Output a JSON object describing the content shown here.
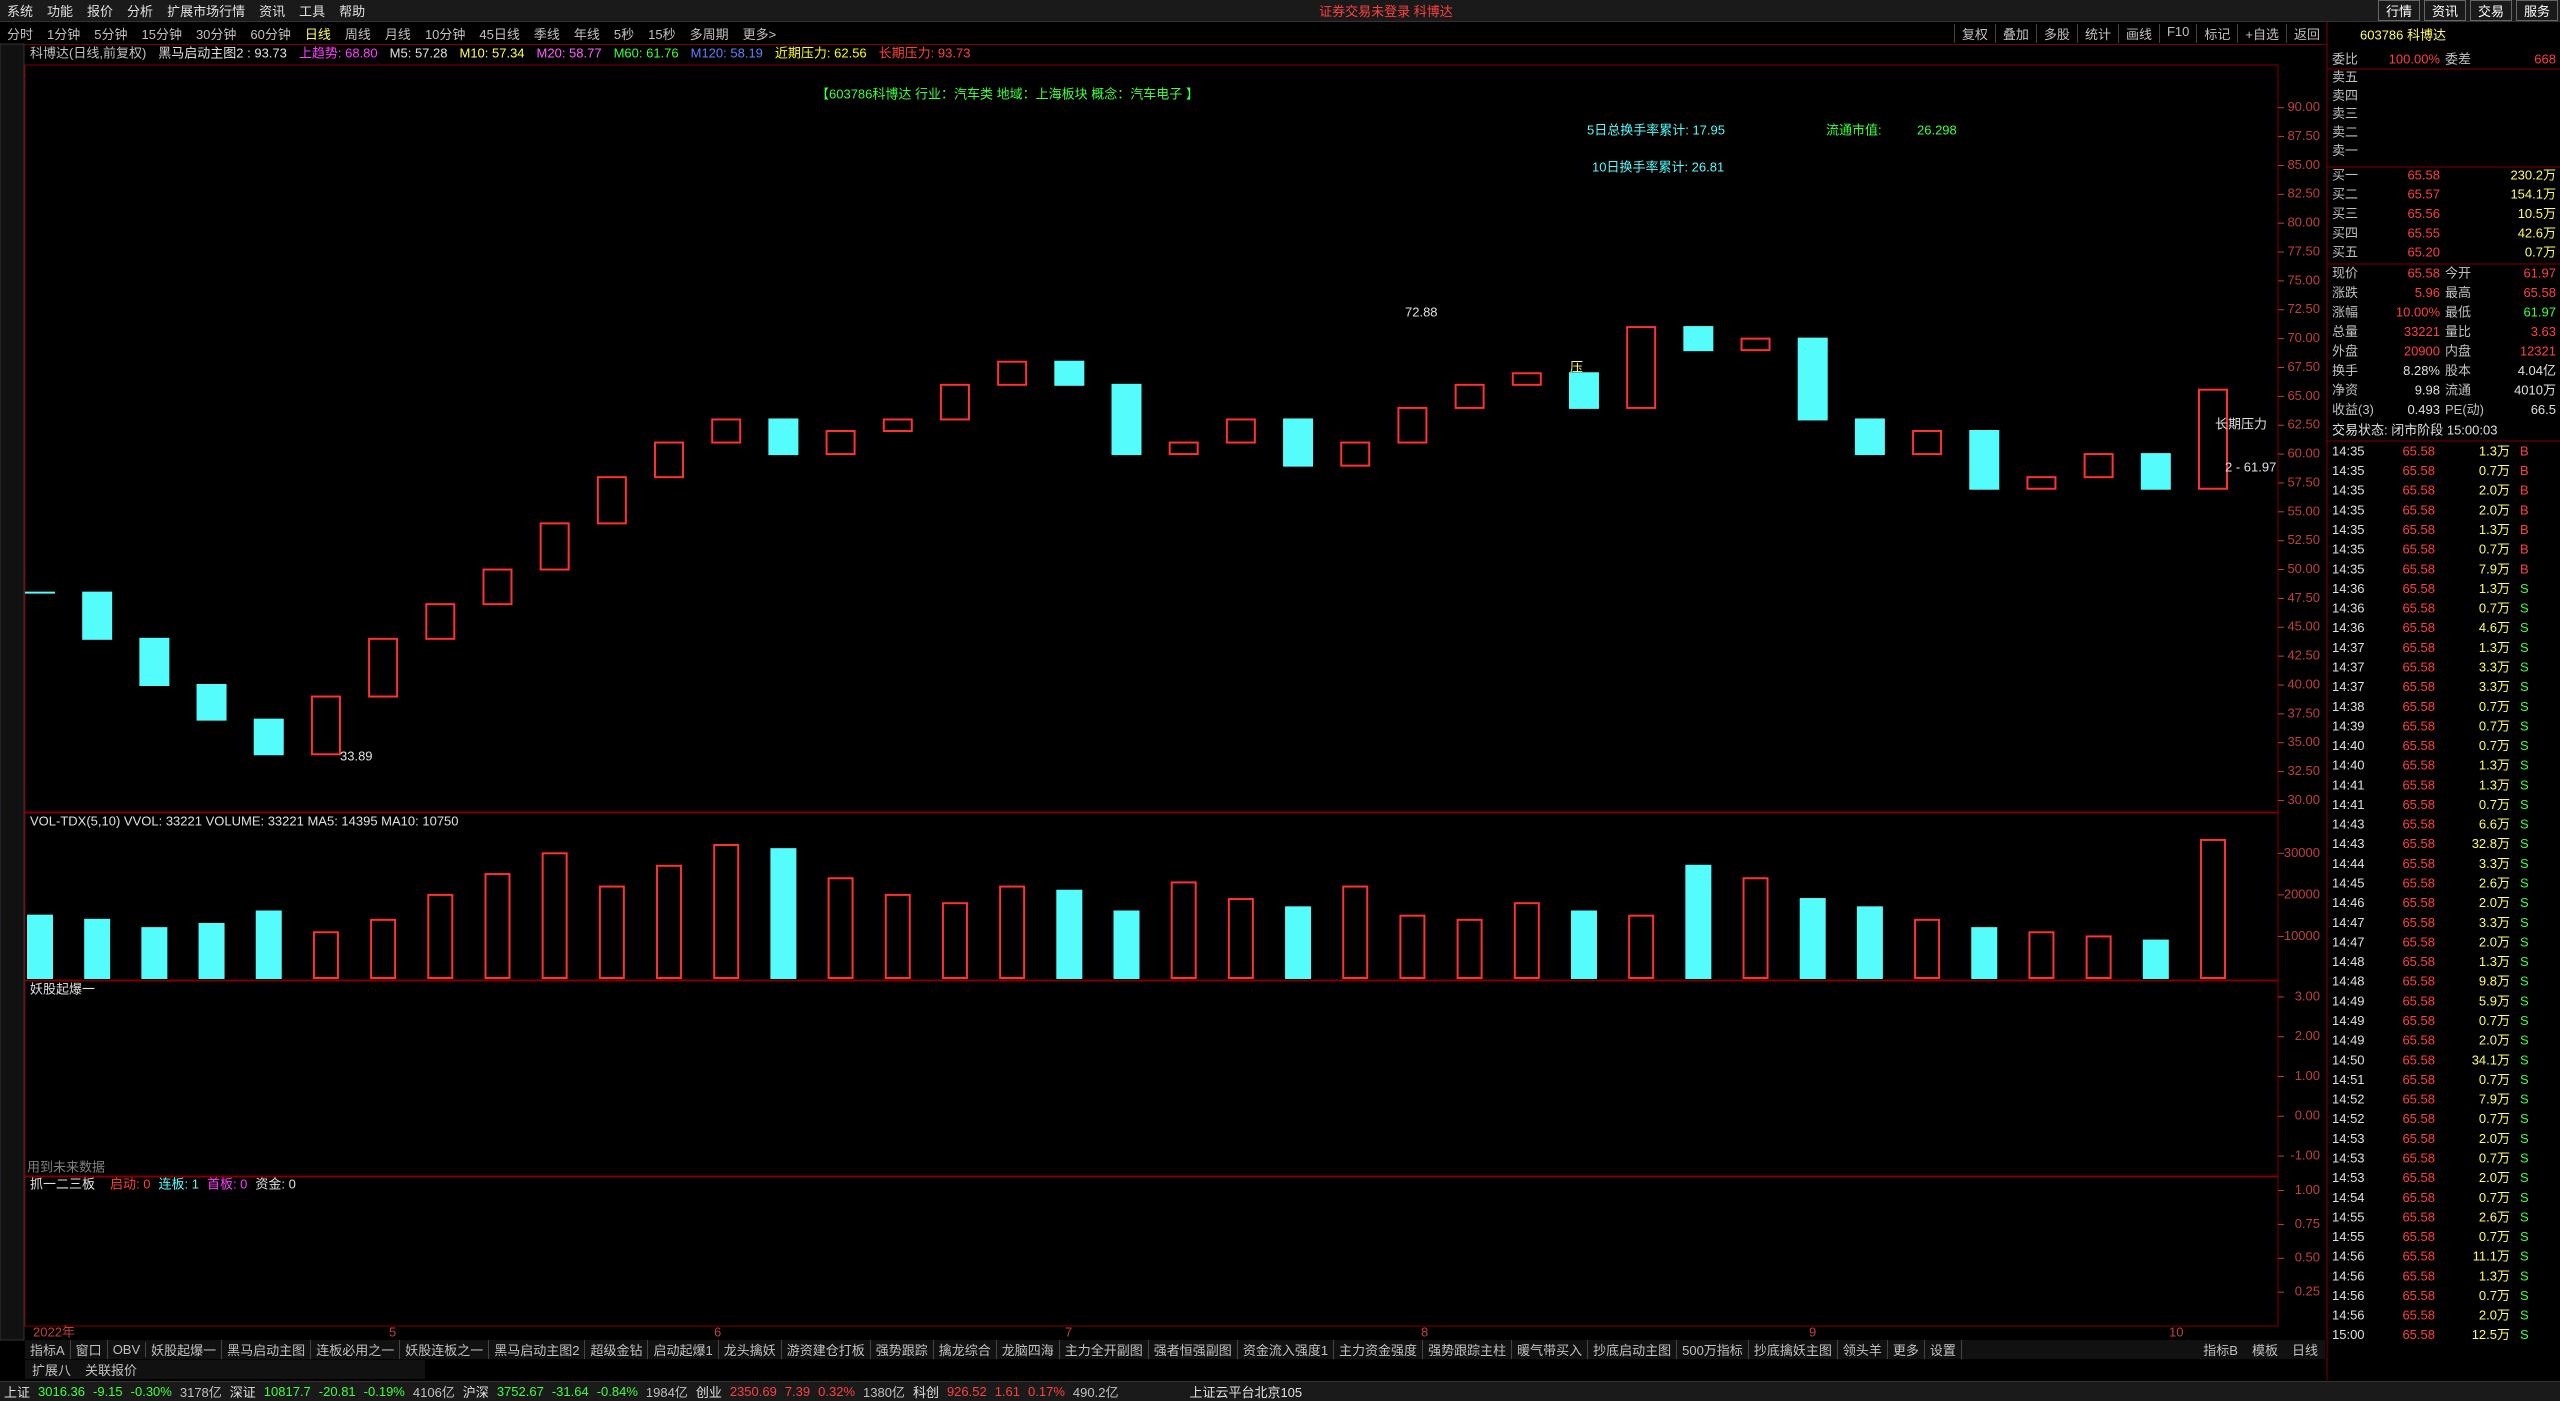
{
  "menu": [
    "系统",
    "功能",
    "报价",
    "分析",
    "扩展市场行情",
    "资讯",
    "工具",
    "帮助"
  ],
  "login_notice": "证券交易未登录 科博达",
  "right_menu": [
    "行情",
    "资讯",
    "交易",
    "服务"
  ],
  "periods": [
    "分时",
    "1分钟",
    "5分钟",
    "15分钟",
    "30分钟",
    "60分钟",
    "日线",
    "周线",
    "月线",
    "10分钟",
    "45日线",
    "季线",
    "年线",
    "5秒",
    "15秒",
    "多周期",
    "更多>"
  ],
  "tools": [
    "复权",
    "叠加",
    "多股",
    "统计",
    "画线",
    "F10",
    "标记",
    "+自选",
    "返回"
  ],
  "indicator_line": [
    {
      "text": "科博达(日线,前复权)",
      "color": "#c0c0c0"
    },
    {
      "text": "黑马启动主图2 : 93.73",
      "color": "#e0e0e0"
    },
    {
      "text": "上趋势: 68.80",
      "color": "#ff40ff"
    },
    {
      "text": "M5: 57.28",
      "color": "#e0e0e0"
    },
    {
      "text": "M10: 57.34",
      "color": "#ffff60"
    },
    {
      "text": "M20: 58.77",
      "color": "#ff60ff"
    },
    {
      "text": "M60: 61.76",
      "color": "#40ff40"
    },
    {
      "text": "M120: 58.19",
      "color": "#6080ff"
    },
    {
      "text": "近期压力: 62.56",
      "color": "#ffff00"
    },
    {
      "text": "长期压力: 93.73",
      "color": "#ff4040"
    }
  ],
  "info": "【603786科博达 行业：汽车类 地域：上海板块 概念：汽车电子 】",
  "turnover5": "5日总换手率累计: 17.95",
  "float_cap_label": "流通市值:",
  "float_cap": "26.298",
  "turnover10": "10日换手率累计: 26.81",
  "annotations": {
    "high": "72.88",
    "low": "33.89",
    "pressure": "压",
    "long_pressure": "长期压力",
    "last": "2 - 61.97"
  },
  "chart_data": {
    "type": "candlestick",
    "close": [
      48,
      44,
      40,
      37,
      34,
      39,
      44,
      47,
      50,
      54,
      58,
      61,
      63,
      60,
      62,
      63,
      66,
      68,
      66,
      60,
      61,
      63,
      59,
      61,
      64,
      66,
      67,
      64,
      71,
      69,
      70,
      63,
      60,
      62,
      57,
      58,
      60,
      57,
      65.58
    ],
    "volume": [
      15000,
      14000,
      12000,
      13000,
      16000,
      11000,
      14000,
      20000,
      25000,
      30000,
      22000,
      27000,
      32000,
      31000,
      24000,
      20000,
      18000,
      22000,
      21000,
      16000,
      23000,
      19000,
      17000,
      22000,
      15000,
      14000,
      18000,
      16000,
      15000,
      27000,
      24000,
      19000,
      17000,
      14000,
      12000,
      11000,
      10000,
      9000,
      33221
    ],
    "up_color": "#ff3232",
    "down_color": "#54fcfc",
    "ylim": [
      29,
      93.7
    ],
    "yticks": [
      {
        "value": 30,
        "label": "30.00"
      },
      {
        "value": 32.5,
        "label": "32.50"
      },
      {
        "value": 35,
        "label": "35.00"
      },
      {
        "value": 37.5,
        "label": "37.50"
      },
      {
        "value": 40,
        "label": "40.00"
      },
      {
        "value": 42.5,
        "label": "42.50"
      },
      {
        "value": 45,
        "label": "45.00"
      },
      {
        "value": 47.5,
        "label": "47.50"
      },
      {
        "value": 50,
        "label": "50.00"
      },
      {
        "value": 52.5,
        "label": "52.50"
      },
      {
        "value": 55,
        "label": "55.00"
      },
      {
        "value": 57.5,
        "label": "57.50"
      },
      {
        "value": 60,
        "label": "60.00"
      },
      {
        "value": 62.5,
        "label": "62.50"
      },
      {
        "value": 65,
        "label": "65.00"
      },
      {
        "value": 67.5,
        "label": "67.50"
      },
      {
        "value": 70,
        "label": "70.00"
      },
      {
        "value": 72.5,
        "label": "72.50"
      },
      {
        "value": 75,
        "label": "75.00"
      },
      {
        "value": 77.5,
        "label": "77.50"
      },
      {
        "value": 80,
        "label": "80.00"
      },
      {
        "value": 82.5,
        "label": "82.50"
      },
      {
        "value": 85,
        "label": "85.00"
      },
      {
        "value": 87.5,
        "label": "87.50"
      },
      {
        "value": 90,
        "label": "90.00"
      }
    ],
    "vol_title": "VOL-TDX(5,10) VVOL: 33221 VOLUME: 33221 MA5: 14395 MA10: 10750",
    "vylim": [
      0,
      39700
    ],
    "vyticks": [
      10000,
      20000,
      30000
    ],
    "xlabels": [
      "2022年",
      "5",
      "6",
      "7",
      "8",
      "9",
      "10"
    ]
  },
  "panel3": {
    "title": "妖股起爆一",
    "note": "用到未来数据",
    "ylim": [
      -1.5,
      3.4
    ],
    "yticks": [
      {
        "value": 3,
        "label": "3.00"
      },
      {
        "value": 2,
        "label": "2.00"
      },
      {
        "value": 1,
        "label": "1.00"
      },
      {
        "value": 0,
        "label": "0.00"
      },
      {
        "value": -1,
        "label": "-1.00"
      }
    ]
  },
  "panel4": {
    "title": "抓一二三板",
    "legend": [
      {
        "text": "启动: 0",
        "color": "#ff4040"
      },
      {
        "text": "连板: 1",
        "color": "#54fcfc"
      },
      {
        "text": "首板: 0",
        "color": "#ff40ff"
      },
      {
        "text": "资金: 0",
        "color": "#e0e0e0"
      }
    ],
    "ylim": [
      0,
      1.1
    ],
    "yticks": [
      {
        "value": 1,
        "label": "1.00"
      },
      {
        "value": 0.75,
        "label": "0.75"
      },
      {
        "value": 0.5,
        "label": "0.50"
      },
      {
        "value": 0.25,
        "label": "0.25"
      }
    ]
  },
  "quote": {
    "stock": "603786 科博达",
    "ratio_label": "委比",
    "ratio": "100.00%",
    "diff_label": "委差",
    "diff": "668",
    "sell": [
      "卖五",
      "卖四",
      "卖三",
      "卖二",
      "卖一"
    ],
    "buy": [
      [
        "买一",
        "65.58",
        "230.2万"
      ],
      [
        "买二",
        "65.57",
        "154.1万"
      ],
      [
        "买三",
        "65.56",
        "10.5万"
      ],
      [
        "买四",
        "65.55",
        "42.6万"
      ],
      [
        "买五",
        "65.20",
        "0.7万"
      ]
    ],
    "stats": [
      [
        "现价",
        "65.58",
        "今开",
        "61.97"
      ],
      [
        "涨跌",
        "5.96",
        "最高",
        "65.58"
      ],
      [
        "涨幅",
        "10.00%",
        "最低",
        "61.97"
      ],
      [
        "总量",
        "33221",
        "量比",
        "3.63"
      ],
      [
        "外盘",
        "20900",
        "内盘",
        "12321"
      ],
      [
        "换手",
        "8.28%",
        "股本",
        "4.04亿"
      ],
      [
        "净资",
        "9.98",
        "流通",
        "4010万"
      ],
      [
        "收益(3)",
        "0.493",
        "PE(动)",
        "66.5"
      ]
    ],
    "status": "交易状态: 闭市阶段 15:00:03",
    "ticks": [
      [
        "14:35",
        "65.58",
        "1.3万",
        "B"
      ],
      [
        "14:35",
        "65.58",
        "0.7万",
        "B"
      ],
      [
        "14:35",
        "65.58",
        "2.0万",
        "B"
      ],
      [
        "14:35",
        "65.58",
        "2.0万",
        "B"
      ],
      [
        "14:35",
        "65.58",
        "1.3万",
        "B"
      ],
      [
        "14:35",
        "65.58",
        "0.7万",
        "B"
      ],
      [
        "14:35",
        "65.58",
        "7.9万",
        "B"
      ],
      [
        "14:36",
        "65.58",
        "1.3万",
        "S"
      ],
      [
        "14:36",
        "65.58",
        "0.7万",
        "S"
      ],
      [
        "14:36",
        "65.58",
        "4.6万",
        "S"
      ],
      [
        "14:37",
        "65.58",
        "1.3万",
        "S"
      ],
      [
        "14:37",
        "65.58",
        "3.3万",
        "S"
      ],
      [
        "14:37",
        "65.58",
        "3.3万",
        "S"
      ],
      [
        "14:38",
        "65.58",
        "0.7万",
        "S"
      ],
      [
        "14:39",
        "65.58",
        "0.7万",
        "S"
      ],
      [
        "14:40",
        "65.58",
        "0.7万",
        "S"
      ],
      [
        "14:40",
        "65.58",
        "1.3万",
        "S"
      ],
      [
        "14:41",
        "65.58",
        "1.3万",
        "S"
      ],
      [
        "14:41",
        "65.58",
        "0.7万",
        "S"
      ],
      [
        "14:43",
        "65.58",
        "6.6万",
        "S"
      ],
      [
        "14:43",
        "65.58",
        "32.8万",
        "S"
      ],
      [
        "14:44",
        "65.58",
        "3.3万",
        "S"
      ],
      [
        "14:45",
        "65.58",
        "2.6万",
        "S"
      ],
      [
        "14:46",
        "65.58",
        "2.0万",
        "S"
      ],
      [
        "14:47",
        "65.58",
        "3.3万",
        "S"
      ],
      [
        "14:47",
        "65.58",
        "2.0万",
        "S"
      ],
      [
        "14:48",
        "65.58",
        "1.3万",
        "S"
      ],
      [
        "14:48",
        "65.58",
        "9.8万",
        "S"
      ],
      [
        "14:49",
        "65.58",
        "5.9万",
        "S"
      ],
      [
        "14:49",
        "65.58",
        "0.7万",
        "S"
      ],
      [
        "14:49",
        "65.58",
        "2.0万",
        "S"
      ],
      [
        "14:50",
        "65.58",
        "34.1万",
        "S"
      ],
      [
        "14:51",
        "65.58",
        "0.7万",
        "S"
      ],
      [
        "14:52",
        "65.58",
        "7.9万",
        "S"
      ],
      [
        "14:52",
        "65.58",
        "0.7万",
        "S"
      ],
      [
        "14:53",
        "65.58",
        "2.0万",
        "S"
      ],
      [
        "14:53",
        "65.58",
        "0.7万",
        "S"
      ],
      [
        "14:53",
        "65.58",
        "2.0万",
        "S"
      ],
      [
        "14:54",
        "65.58",
        "0.7万",
        "S"
      ],
      [
        "14:55",
        "65.58",
        "2.6万",
        "S"
      ],
      [
        "14:55",
        "65.58",
        "0.7万",
        "S"
      ],
      [
        "14:56",
        "65.58",
        "11.1万",
        "S"
      ],
      [
        "14:56",
        "65.58",
        "1.3万",
        "S"
      ],
      [
        "14:56",
        "65.58",
        "0.7万",
        "S"
      ],
      [
        "14:56",
        "65.58",
        "2.0万",
        "S"
      ],
      [
        "15:00",
        "65.58",
        "12.5万",
        "S"
      ]
    ]
  },
  "tabs": [
    "指标A",
    "窗口",
    "OBV",
    "妖股起爆一",
    "黑马启动主图",
    "连板必用之一",
    "妖股连板之一",
    "黑马启动主图2",
    "超级金钻",
    "启动起爆1",
    "龙头擒妖",
    "游资建仓打板",
    "强势跟踪",
    "擒龙综合",
    "龙脑四海",
    "主力全开副图",
    "强者恒强副图",
    "资金流入强度1",
    "主力资金强度",
    "强势跟踪主柱",
    "暖气带买入",
    "抄底启动主图",
    "500万指标",
    "抄底擒妖主图",
    "领头羊",
    "更多",
    "设置"
  ],
  "tabs2": [
    "扩展八",
    "关联报价"
  ],
  "tabs_right": [
    "指标B",
    "模板",
    "日线"
  ],
  "indices": [
    [
      "上证",
      "3016.36",
      "-9.15",
      "-0.30%",
      "3178亿"
    ],
    [
      "深证",
      "10817.7",
      "-20.81",
      "-0.19%",
      "4106亿"
    ],
    [
      "沪深",
      "3752.67",
      "-31.64",
      "-0.84%",
      "1984亿"
    ],
    [
      "创业",
      "2350.69",
      "7.39",
      "0.32%",
      "1380亿"
    ],
    [
      "科创",
      "926.52",
      "1.61",
      "0.17%",
      "490.2亿"
    ]
  ],
  "server": "上证云平台北京105"
}
